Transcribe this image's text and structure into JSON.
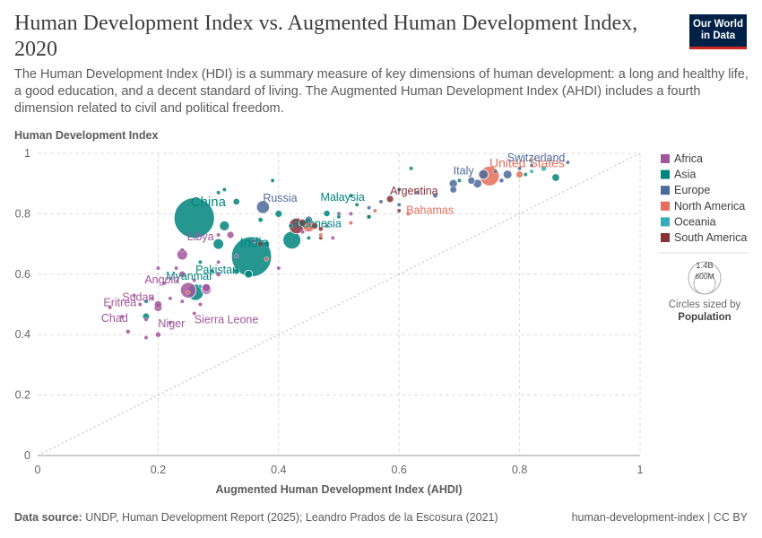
{
  "header": {
    "title": "Human Development Index vs. Augmented Human Development Index, 2020",
    "subtitle": "The Human Development Index (HDI) is a summary measure of key dimensions of human development: a long and healthy life, a good education, and a decent standard of living. The Augmented Human Development Index (AHDI) includes a fourth dimension related to civil and political freedom.",
    "logo_line1": "Our World",
    "logo_line2": "in Data"
  },
  "footer": {
    "source_label": "Data source:",
    "source_text": "UNDP, Human Development Report (2025); Leandro Prados de la Escosura (2021)",
    "right_text": "human-development-index | CC BY"
  },
  "colors": {
    "Africa": "#a2559c",
    "Asia": "#00847e",
    "Europe": "#4c6a9c",
    "North America": "#e56e5a",
    "Oceania": "#38aaba",
    "South America": "#883039"
  },
  "size_legend": {
    "big_label": "1.4B",
    "small_label": "600M",
    "caption": "Circles sized by",
    "caption_bold": "Population"
  },
  "chart_data": {
    "type": "scatter",
    "title": "Human Development Index vs. Augmented Human Development Index, 2020",
    "xlabel": "Augmented Human Development Index (AHDI)",
    "ylabel": "Human Development Index",
    "xlim": [
      0,
      1
    ],
    "ylim": [
      0,
      1
    ],
    "xticks": [
      "0",
      "0.2",
      "0.4",
      "0.6",
      "0.8",
      "1"
    ],
    "yticks": [
      "0",
      "0.2",
      "0.4",
      "0.6",
      "0.8",
      "1"
    ],
    "grid": true,
    "diagonal_reference_line": true,
    "legend": [
      "Africa",
      "Asia",
      "Europe",
      "North America",
      "Oceania",
      "South America"
    ],
    "legend_position": "right",
    "points": [
      {
        "label": "China",
        "region": "Asia",
        "x": 0.26,
        "y": 0.786,
        "pop": 1410,
        "show_label": true
      },
      {
        "label": "India",
        "region": "Asia",
        "x": 0.355,
        "y": 0.658,
        "pop": 1390,
        "show_label": true
      },
      {
        "label": "United States",
        "region": "North America",
        "x": 0.75,
        "y": 0.925,
        "pop": 335,
        "show_label": true
      },
      {
        "label": "Indonesia",
        "region": "Asia",
        "x": 0.422,
        "y": 0.713,
        "pop": 274,
        "show_label": true
      },
      {
        "label": "Pakistan",
        "region": "Asia",
        "x": 0.262,
        "y": 0.54,
        "pop": 228,
        "show_label": true
      },
      {
        "label": "Nigeria",
        "region": "Africa",
        "x": 0.25,
        "y": 0.547,
        "pop": 210,
        "show_label": false
      },
      {
        "label": "Russia",
        "region": "Europe",
        "x": 0.374,
        "y": 0.822,
        "pop": 145,
        "show_label": true
      },
      {
        "label": "Myanmar",
        "region": "Asia",
        "x": 0.35,
        "y": 0.6,
        "pop": 54,
        "show_label": true
      },
      {
        "label": "Malaysia",
        "region": "Asia",
        "x": 0.48,
        "y": 0.801,
        "pop": 33,
        "show_label": true
      },
      {
        "label": "Argentina",
        "region": "South America",
        "x": 0.585,
        "y": 0.849,
        "pop": 45,
        "show_label": true
      },
      {
        "label": "Bahamas",
        "region": "North America",
        "x": 0.615,
        "y": 0.8,
        "pop": 0.4,
        "show_label": true
      },
      {
        "label": "Italy",
        "region": "Europe",
        "x": 0.69,
        "y": 0.9,
        "pop": 59,
        "show_label": true
      },
      {
        "label": "Switzerland",
        "region": "Europe",
        "x": 0.88,
        "y": 0.97,
        "pop": 8.7,
        "show_label": true
      },
      {
        "label": "Angola",
        "region": "Africa",
        "x": 0.24,
        "y": 0.6,
        "pop": 33,
        "show_label": true
      },
      {
        "label": "Libya",
        "region": "Africa",
        "x": 0.3,
        "y": 0.73,
        "pop": 6.9,
        "show_label": true
      },
      {
        "label": "Sudan",
        "region": "Africa",
        "x": 0.2,
        "y": 0.5,
        "pop": 44,
        "show_label": true
      },
      {
        "label": "Eritrea",
        "region": "Africa",
        "x": 0.17,
        "y": 0.5,
        "pop": 3.5,
        "show_label": true
      },
      {
        "label": "Sierra Leone",
        "region": "Africa",
        "x": 0.26,
        "y": 0.47,
        "pop": 8.2,
        "show_label": true
      },
      {
        "label": "Chad",
        "region": "Africa",
        "x": 0.15,
        "y": 0.41,
        "pop": 16.6,
        "show_label": true
      },
      {
        "label": "Niger",
        "region": "Africa",
        "x": 0.2,
        "y": 0.4,
        "pop": 24,
        "show_label": true
      },
      {
        "label": "",
        "region": "Africa",
        "x": 0.24,
        "y": 0.665,
        "pop": 100,
        "show_label": false
      },
      {
        "label": "",
        "region": "Africa",
        "x": 0.28,
        "y": 0.55,
        "pop": 90,
        "show_label": false
      },
      {
        "label": "",
        "region": "Africa",
        "x": 0.2,
        "y": 0.49,
        "pop": 58,
        "show_label": false
      },
      {
        "label": "",
        "region": "Africa",
        "x": 0.32,
        "y": 0.73,
        "pop": 40,
        "show_label": false
      },
      {
        "label": "",
        "region": "Africa",
        "x": 0.28,
        "y": 0.555,
        "pop": 60,
        "show_label": false
      },
      {
        "label": "",
        "region": "Africa",
        "x": 0.3,
        "y": 0.6,
        "pop": 20,
        "show_label": false
      },
      {
        "label": "",
        "region": "Africa",
        "x": 0.26,
        "y": 0.58,
        "pop": 12,
        "show_label": false
      },
      {
        "label": "",
        "region": "Africa",
        "x": 0.22,
        "y": 0.52,
        "pop": 10,
        "show_label": false
      },
      {
        "label": "",
        "region": "Africa",
        "x": 0.18,
        "y": 0.45,
        "pop": 8,
        "show_label": false
      },
      {
        "label": "",
        "region": "Africa",
        "x": 0.22,
        "y": 0.44,
        "pop": 6,
        "show_label": false
      },
      {
        "label": "",
        "region": "Africa",
        "x": 0.19,
        "y": 0.52,
        "pop": 5,
        "show_label": false
      },
      {
        "label": "",
        "region": "Africa",
        "x": 0.14,
        "y": 0.46,
        "pop": 4,
        "show_label": false
      },
      {
        "label": "",
        "region": "Africa",
        "x": 0.18,
        "y": 0.39,
        "pop": 3,
        "show_label": false
      },
      {
        "label": "",
        "region": "Africa",
        "x": 0.2,
        "y": 0.62,
        "pop": 3,
        "show_label": false
      },
      {
        "label": "",
        "region": "Africa",
        "x": 0.24,
        "y": 0.68,
        "pop": 2,
        "show_label": false
      },
      {
        "label": "",
        "region": "Africa",
        "x": 0.27,
        "y": 0.5,
        "pop": 3,
        "show_label": false
      },
      {
        "label": "",
        "region": "Africa",
        "x": 0.3,
        "y": 0.64,
        "pop": 2,
        "show_label": false
      },
      {
        "label": "",
        "region": "Africa",
        "x": 0.33,
        "y": 0.66,
        "pop": 5,
        "show_label": false
      },
      {
        "label": "",
        "region": "Africa",
        "x": 0.36,
        "y": 0.71,
        "pop": 3,
        "show_label": false
      },
      {
        "label": "",
        "region": "Africa",
        "x": 0.4,
        "y": 0.62,
        "pop": 2,
        "show_label": false
      },
      {
        "label": "",
        "region": "Africa",
        "x": 0.44,
        "y": 0.74,
        "pop": 11,
        "show_label": false
      },
      {
        "label": "",
        "region": "Africa",
        "x": 0.49,
        "y": 0.72,
        "pop": 2,
        "show_label": false
      },
      {
        "label": "",
        "region": "Africa",
        "x": 0.52,
        "y": 0.8,
        "pop": 1.3,
        "show_label": false
      },
      {
        "label": "",
        "region": "Africa",
        "x": 0.16,
        "y": 0.53,
        "pop": 2,
        "show_label": false
      },
      {
        "label": "",
        "region": "Africa",
        "x": 0.21,
        "y": 0.57,
        "pop": 4,
        "show_label": false
      },
      {
        "label": "",
        "region": "Africa",
        "x": 0.23,
        "y": 0.62,
        "pop": 7,
        "show_label": false
      },
      {
        "label": "",
        "region": "Africa",
        "x": 0.12,
        "y": 0.49,
        "pop": 2,
        "show_label": false
      },
      {
        "label": "",
        "region": "Africa",
        "x": 0.24,
        "y": 0.51,
        "pop": 5,
        "show_label": false
      },
      {
        "label": "",
        "region": "Asia",
        "x": 0.31,
        "y": 0.76,
        "pop": 85,
        "show_label": false
      },
      {
        "label": "",
        "region": "Asia",
        "x": 0.3,
        "y": 0.7,
        "pop": 97,
        "show_label": false
      },
      {
        "label": "",
        "region": "Asia",
        "x": 0.33,
        "y": 0.84,
        "pop": 35,
        "show_label": false
      },
      {
        "label": "",
        "region": "Asia",
        "x": 0.4,
        "y": 0.8,
        "pop": 40,
        "show_label": false
      },
      {
        "label": "",
        "region": "Asia",
        "x": 0.38,
        "y": 0.7,
        "pop": 28,
        "show_label": false
      },
      {
        "label": "",
        "region": "Asia",
        "x": 0.33,
        "y": 0.61,
        "pop": 30,
        "show_label": false
      },
      {
        "label": "",
        "region": "Asia",
        "x": 0.37,
        "y": 0.78,
        "pop": 20,
        "show_label": false
      },
      {
        "label": "",
        "region": "Asia",
        "x": 0.42,
        "y": 0.76,
        "pop": 10,
        "show_label": false
      },
      {
        "label": "",
        "region": "Asia",
        "x": 0.31,
        "y": 0.88,
        "pop": 5,
        "show_label": false
      },
      {
        "label": "",
        "region": "Asia",
        "x": 0.18,
        "y": 0.46,
        "pop": 38,
        "show_label": false
      },
      {
        "label": "",
        "region": "Asia",
        "x": 0.18,
        "y": 0.51,
        "pop": 6,
        "show_label": false
      },
      {
        "label": "",
        "region": "Asia",
        "x": 0.45,
        "y": 0.78,
        "pop": 5,
        "show_label": false
      },
      {
        "label": "",
        "region": "Asia",
        "x": 0.62,
        "y": 0.95,
        "pop": 5,
        "show_label": false
      },
      {
        "label": "",
        "region": "Asia",
        "x": 0.86,
        "y": 0.92,
        "pop": 51,
        "show_label": false
      },
      {
        "label": "",
        "region": "Asia",
        "x": 0.81,
        "y": 0.93,
        "pop": 9,
        "show_label": false
      },
      {
        "label": "",
        "region": "Asia",
        "x": 0.53,
        "y": 0.83,
        "pop": 3,
        "show_label": false
      },
      {
        "label": "",
        "region": "Asia",
        "x": 0.5,
        "y": 0.79,
        "pop": 4,
        "show_label": false
      },
      {
        "label": "",
        "region": "Asia",
        "x": 0.29,
        "y": 0.61,
        "pop": 4,
        "show_label": false
      },
      {
        "label": "",
        "region": "Asia",
        "x": 0.27,
        "y": 0.64,
        "pop": 3,
        "show_label": false
      },
      {
        "label": "",
        "region": "Asia",
        "x": 0.3,
        "y": 0.87,
        "pop": 3,
        "show_label": false
      },
      {
        "label": "",
        "region": "Asia",
        "x": 0.39,
        "y": 0.91,
        "pop": 2,
        "show_label": false
      },
      {
        "label": "",
        "region": "Asia",
        "x": 0.45,
        "y": 0.72,
        "pop": 3,
        "show_label": false
      },
      {
        "label": "",
        "region": "Asia",
        "x": 0.52,
        "y": 0.86,
        "pop": 4,
        "show_label": false
      },
      {
        "label": "",
        "region": "Asia",
        "x": 0.55,
        "y": 0.79,
        "pop": 2,
        "show_label": false
      },
      {
        "label": "",
        "region": "Asia",
        "x": 0.6,
        "y": 0.88,
        "pop": 3,
        "show_label": false
      },
      {
        "label": "",
        "region": "Asia",
        "x": 0.7,
        "y": 0.91,
        "pop": 3,
        "show_label": false
      },
      {
        "label": "",
        "region": "Europe",
        "x": 0.74,
        "y": 0.93,
        "pop": 83,
        "show_label": false
      },
      {
        "label": "",
        "region": "Europe",
        "x": 0.73,
        "y": 0.9,
        "pop": 67,
        "show_label": false
      },
      {
        "label": "",
        "region": "Europe",
        "x": 0.78,
        "y": 0.93,
        "pop": 67,
        "show_label": false
      },
      {
        "label": "",
        "region": "Europe",
        "x": 0.72,
        "y": 0.91,
        "pop": 47,
        "show_label": false
      },
      {
        "label": "",
        "region": "Europe",
        "x": 0.69,
        "y": 0.88,
        "pop": 38,
        "show_label": false
      },
      {
        "label": "",
        "region": "Europe",
        "x": 0.45,
        "y": 0.78,
        "pop": 44,
        "show_label": false
      },
      {
        "label": "",
        "region": "Europe",
        "x": 0.77,
        "y": 0.91,
        "pop": 17,
        "show_label": false
      },
      {
        "label": "",
        "region": "Europe",
        "x": 0.66,
        "y": 0.86,
        "pop": 19,
        "show_label": false
      },
      {
        "label": "",
        "region": "Europe",
        "x": 0.6,
        "y": 0.83,
        "pop": 10,
        "show_label": false
      },
      {
        "label": "",
        "region": "Europe",
        "x": 0.55,
        "y": 0.82,
        "pop": 7,
        "show_label": false
      },
      {
        "label": "",
        "region": "Europe",
        "x": 0.48,
        "y": 0.76,
        "pop": 9,
        "show_label": false
      },
      {
        "label": "",
        "region": "Europe",
        "x": 0.8,
        "y": 0.95,
        "pop": 5,
        "show_label": false
      },
      {
        "label": "",
        "region": "Europe",
        "x": 0.82,
        "y": 0.96,
        "pop": 5.5,
        "show_label": false
      },
      {
        "label": "",
        "region": "Europe",
        "x": 0.63,
        "y": 0.87,
        "pop": 4,
        "show_label": false
      },
      {
        "label": "",
        "region": "Europe",
        "x": 0.5,
        "y": 0.8,
        "pop": 6,
        "show_label": false
      },
      {
        "label": "",
        "region": "Europe",
        "x": 0.57,
        "y": 0.84,
        "pop": 3,
        "show_label": false
      },
      {
        "label": "",
        "region": "Europe",
        "x": 0.76,
        "y": 0.94,
        "pop": 10,
        "show_label": false
      },
      {
        "label": "",
        "region": "North America",
        "x": 0.8,
        "y": 0.93,
        "pop": 38,
        "show_label": false
      },
      {
        "label": "",
        "region": "North America",
        "x": 0.45,
        "y": 0.76,
        "pop": 128,
        "show_label": false
      },
      {
        "label": "",
        "region": "North America",
        "x": 0.52,
        "y": 0.77,
        "pop": 5,
        "show_label": false
      },
      {
        "label": "",
        "region": "North America",
        "x": 0.47,
        "y": 0.73,
        "pop": 3,
        "show_label": false
      },
      {
        "label": "",
        "region": "North America",
        "x": 0.38,
        "y": 0.65,
        "pop": 17,
        "show_label": false
      },
      {
        "label": "",
        "region": "North America",
        "x": 0.56,
        "y": 0.81,
        "pop": 3,
        "show_label": false
      },
      {
        "label": "",
        "region": "North America",
        "x": 0.25,
        "y": 0.54,
        "pop": 11,
        "show_label": false
      },
      {
        "label": "",
        "region": "Oceania",
        "x": 0.84,
        "y": 0.95,
        "pop": 25,
        "show_label": false
      },
      {
        "label": "",
        "region": "Oceania",
        "x": 0.82,
        "y": 0.94,
        "pop": 5,
        "show_label": false
      },
      {
        "label": "",
        "region": "Oceania",
        "x": 0.27,
        "y": 0.56,
        "pop": 9,
        "show_label": false
      },
      {
        "label": "",
        "region": "South America",
        "x": 0.43,
        "y": 0.76,
        "pop": 213,
        "show_label": false
      },
      {
        "label": "",
        "region": "South America",
        "x": 0.44,
        "y": 0.77,
        "pop": 51,
        "show_label": false
      },
      {
        "label": "",
        "region": "South America",
        "x": 0.46,
        "y": 0.76,
        "pop": 33,
        "show_label": false
      },
      {
        "label": "",
        "region": "South America",
        "x": 0.47,
        "y": 0.75,
        "pop": 18,
        "show_label": false
      },
      {
        "label": "",
        "region": "South America",
        "x": 0.55,
        "y": 0.79,
        "pop": 19,
        "show_label": false
      },
      {
        "label": "",
        "region": "South America",
        "x": 0.37,
        "y": 0.7,
        "pop": 28,
        "show_label": false
      },
      {
        "label": "",
        "region": "South America",
        "x": 0.47,
        "y": 0.72,
        "pop": 12,
        "show_label": false
      },
      {
        "label": "",
        "region": "South America",
        "x": 0.6,
        "y": 0.81,
        "pop": 3.5,
        "show_label": false
      }
    ]
  }
}
